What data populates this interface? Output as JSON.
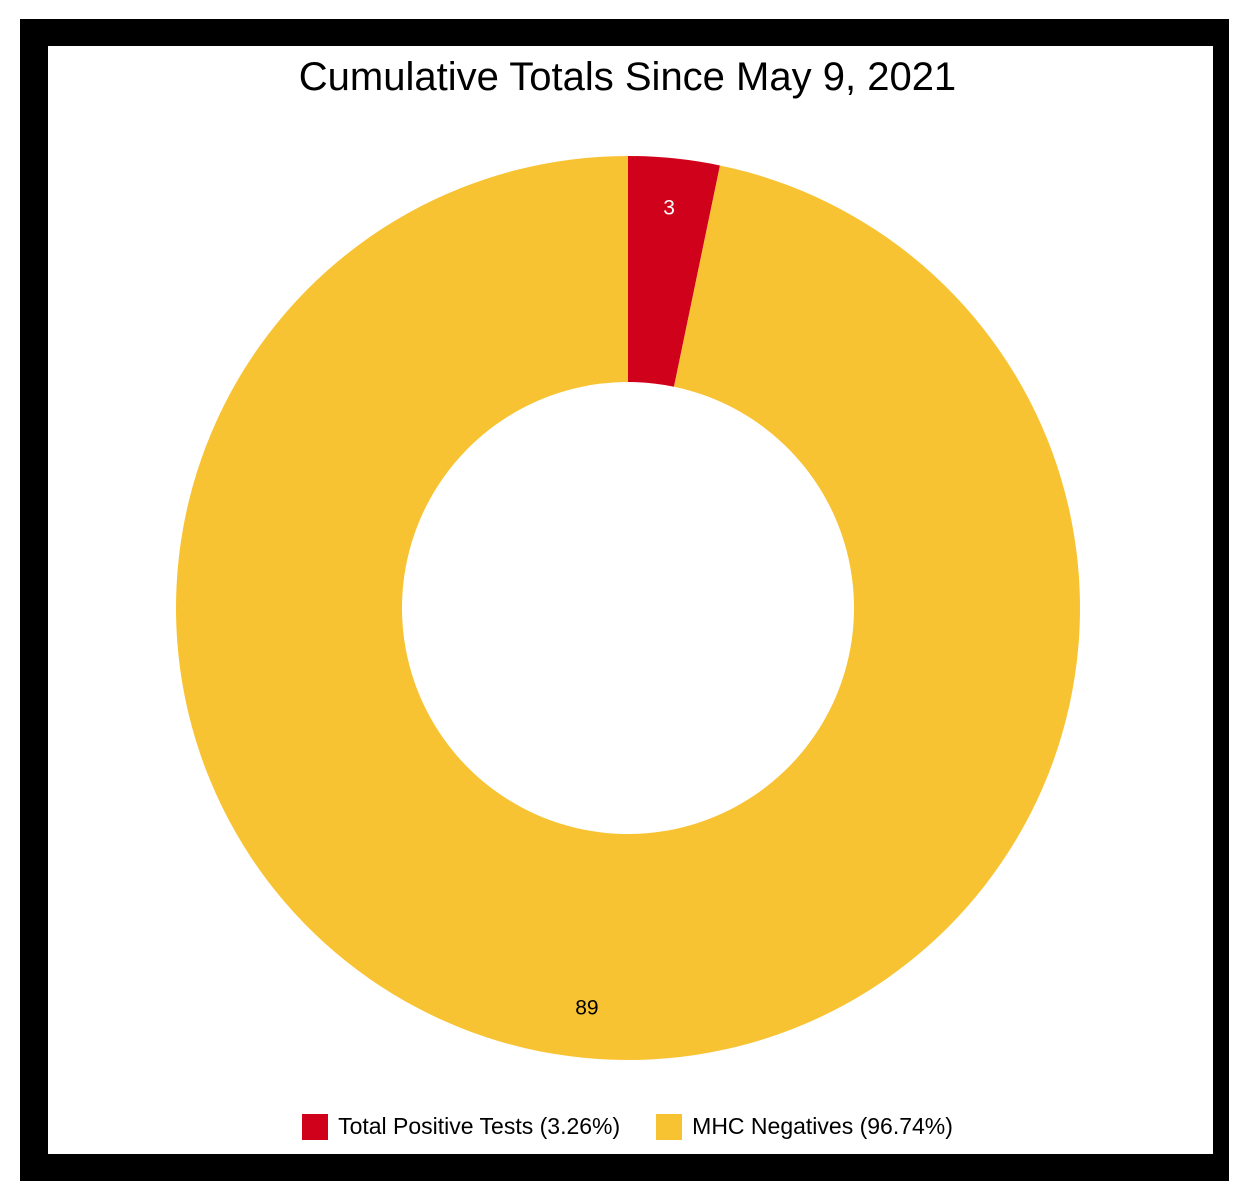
{
  "chart_data": {
    "type": "pie",
    "variant": "donut",
    "title": "Cumulative Totals Since May 9, 2021",
    "categories": [
      "Total Positive Tests",
      "MHC Negatives"
    ],
    "values": [
      3,
      89
    ],
    "colors": [
      "#d0021b",
      "#f8c332"
    ],
    "data_labels": [
      "3",
      "89"
    ],
    "legend": {
      "placement": "bottom",
      "entries": [
        "Total Positive Tests (3.26%)",
        "MHC Negatives (96.74%)"
      ]
    }
  }
}
